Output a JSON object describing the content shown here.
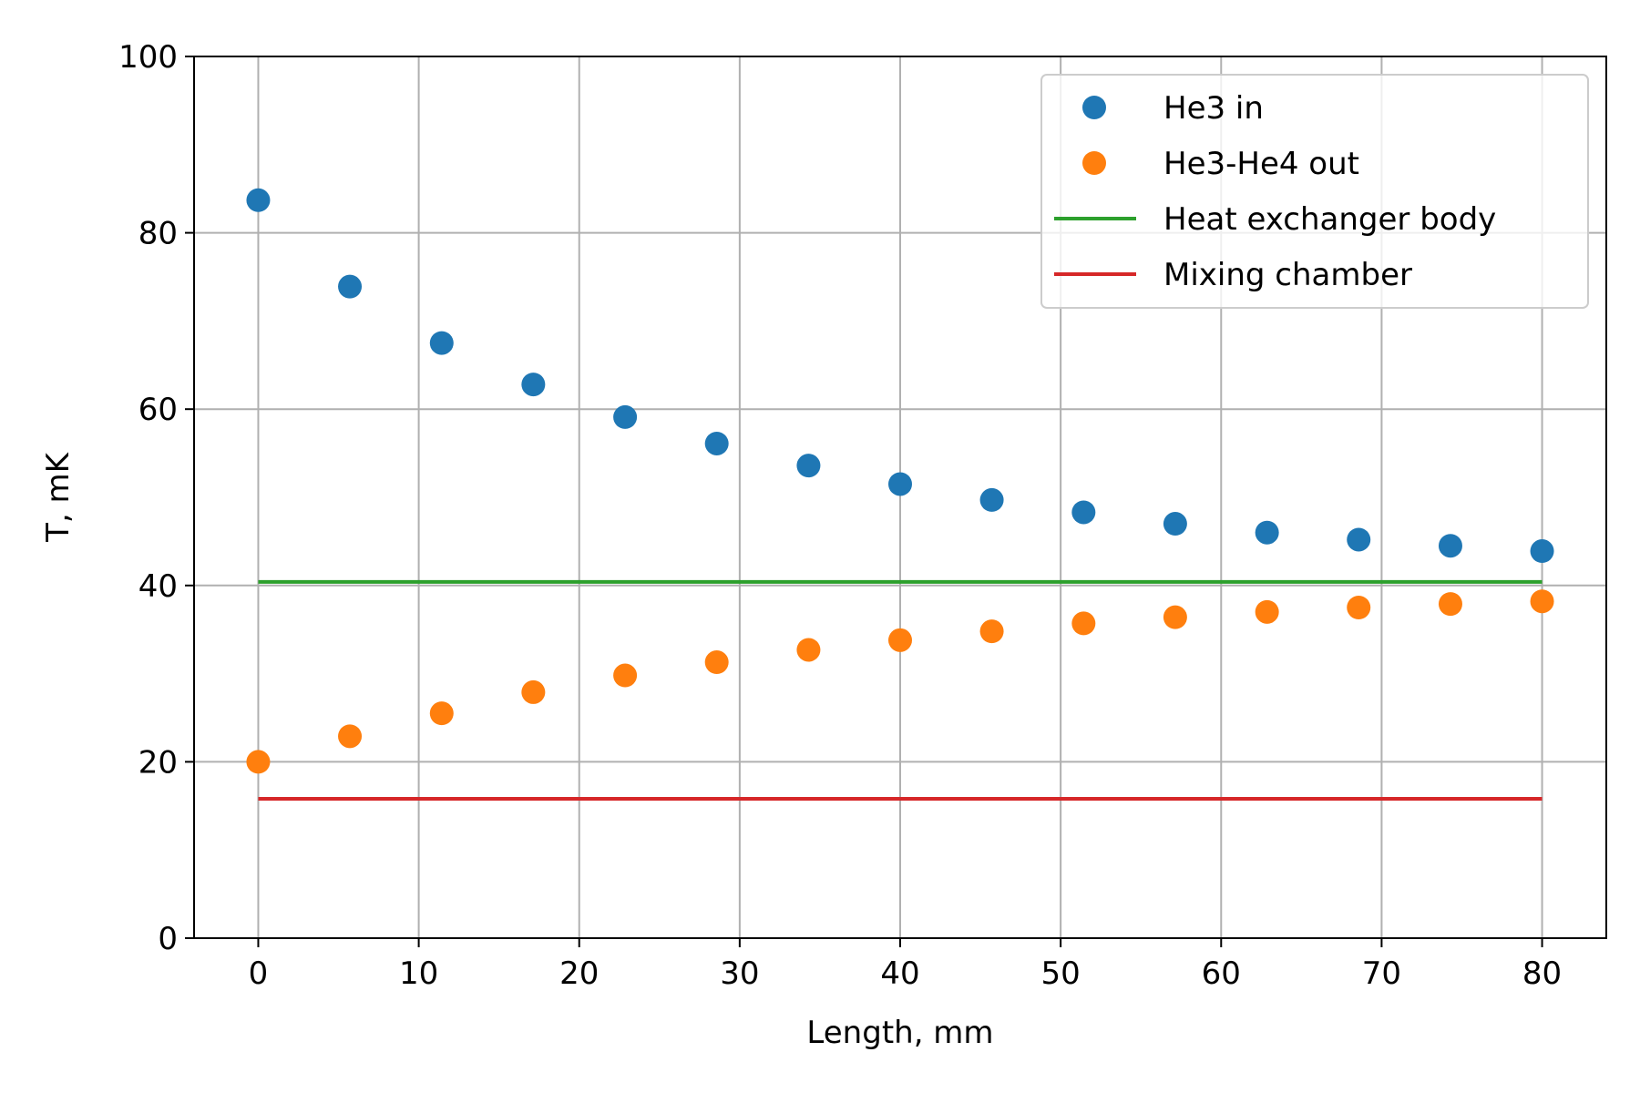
{
  "chart_data": {
    "type": "scatter",
    "title": "",
    "xlabel": "Length, mm",
    "ylabel": "T, mK",
    "xlim": [
      -4,
      84
    ],
    "ylim": [
      0,
      100
    ],
    "xticks": [
      0,
      10,
      20,
      30,
      40,
      50,
      60,
      70,
      80
    ],
    "yticks": [
      0,
      20,
      40,
      60,
      80,
      100
    ],
    "xtick_labels": [
      "0",
      "10",
      "20",
      "30",
      "40",
      "50",
      "60",
      "70",
      "80"
    ],
    "ytick_labels": [
      "0",
      "20",
      "40",
      "60",
      "80",
      "100"
    ],
    "grid": true,
    "legend_position": "top-right",
    "series": [
      {
        "name": "He3 in",
        "kind": "points",
        "color": "#1f77b4",
        "x": [
          0,
          5.71,
          11.43,
          17.14,
          22.86,
          28.57,
          34.29,
          40.0,
          45.71,
          51.43,
          57.14,
          62.86,
          68.57,
          74.29,
          80.0
        ],
        "y": [
          83.7,
          73.9,
          67.5,
          62.8,
          59.1,
          56.1,
          53.6,
          51.5,
          49.7,
          48.3,
          47.0,
          46.0,
          45.2,
          44.5,
          43.9
        ]
      },
      {
        "name": "He3-He4 out",
        "kind": "points",
        "color": "#ff7f0e",
        "x": [
          0,
          5.71,
          11.43,
          17.14,
          22.86,
          28.57,
          34.29,
          40.0,
          45.71,
          51.43,
          57.14,
          62.86,
          68.57,
          74.29,
          80.0
        ],
        "y": [
          20.0,
          22.9,
          25.5,
          27.9,
          29.8,
          31.3,
          32.7,
          33.8,
          34.8,
          35.7,
          36.4,
          37.0,
          37.5,
          37.9,
          38.2
        ]
      },
      {
        "name": "Heat exchanger body",
        "kind": "line",
        "color": "#2ca02c",
        "x": [
          0,
          80
        ],
        "y": [
          40.4,
          40.4
        ]
      },
      {
        "name": "Mixing chamber",
        "kind": "line",
        "color": "#d62728",
        "x": [
          0,
          80
        ],
        "y": [
          15.8,
          15.8
        ]
      }
    ]
  }
}
